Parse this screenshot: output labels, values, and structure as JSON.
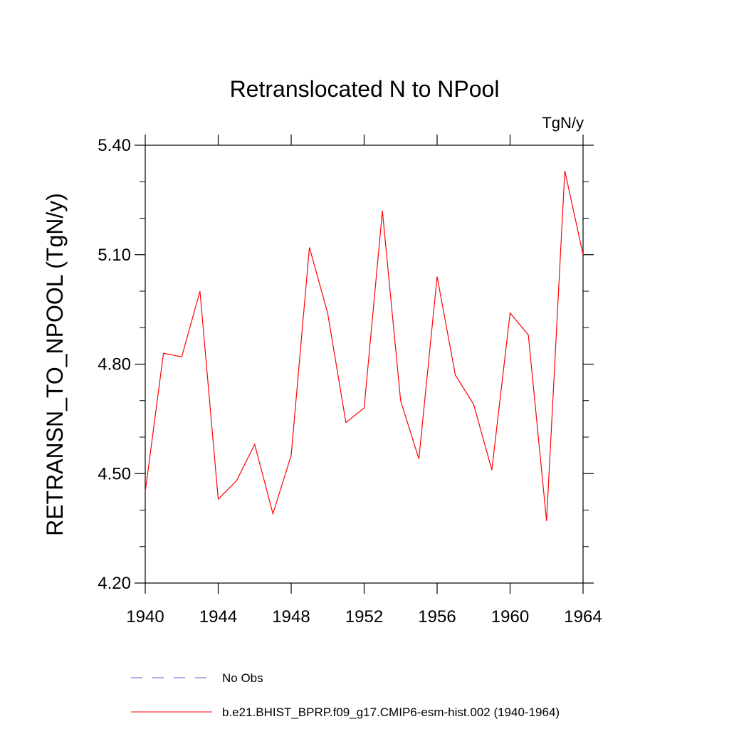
{
  "chart_data": {
    "type": "line",
    "title": "Retranslocated N to NPool",
    "units": "TgN/y",
    "ylabel": "RETRANSN_TO_NPOOL  (TgN/y)",
    "xlabel": "",
    "xlim": [
      1940,
      1964
    ],
    "ylim": [
      4.2,
      5.4
    ],
    "x_ticks": [
      1940,
      1944,
      1948,
      1952,
      1956,
      1960,
      1964
    ],
    "x_tick_labels": [
      "1940",
      "1944",
      "1948",
      "1952",
      "1956",
      "1960",
      "1964"
    ],
    "y_ticks": [
      4.2,
      4.5,
      4.8,
      5.1,
      5.4
    ],
    "y_tick_labels": [
      "4.20",
      "4.50",
      "4.80",
      "5.10",
      "5.40"
    ],
    "y_minor_step": 0.1,
    "x_minor_step": 1,
    "grid": false,
    "legend_position": "bottom",
    "series": [
      {
        "name": "No Obs",
        "color": "#6a5acd",
        "dash": "dashed",
        "x": [],
        "values": []
      },
      {
        "name": "b.e21.BHIST_BPRP.f09_g17.CMIP6-esm-hist.002 (1940-1964)",
        "color": "#ff0000",
        "dash": "solid",
        "x": [
          1940,
          1941,
          1942,
          1943,
          1944,
          1945,
          1946,
          1947,
          1948,
          1949,
          1950,
          1951,
          1952,
          1953,
          1954,
          1955,
          1956,
          1957,
          1958,
          1959,
          1960,
          1961,
          1962,
          1963,
          1964
        ],
        "values": [
          4.45,
          4.83,
          4.82,
          5.0,
          4.43,
          4.48,
          4.58,
          4.39,
          4.55,
          5.12,
          4.94,
          4.64,
          4.68,
          5.22,
          4.7,
          4.54,
          5.04,
          4.77,
          4.69,
          4.51,
          4.94,
          4.88,
          4.37,
          5.33,
          5.1
        ]
      }
    ]
  }
}
